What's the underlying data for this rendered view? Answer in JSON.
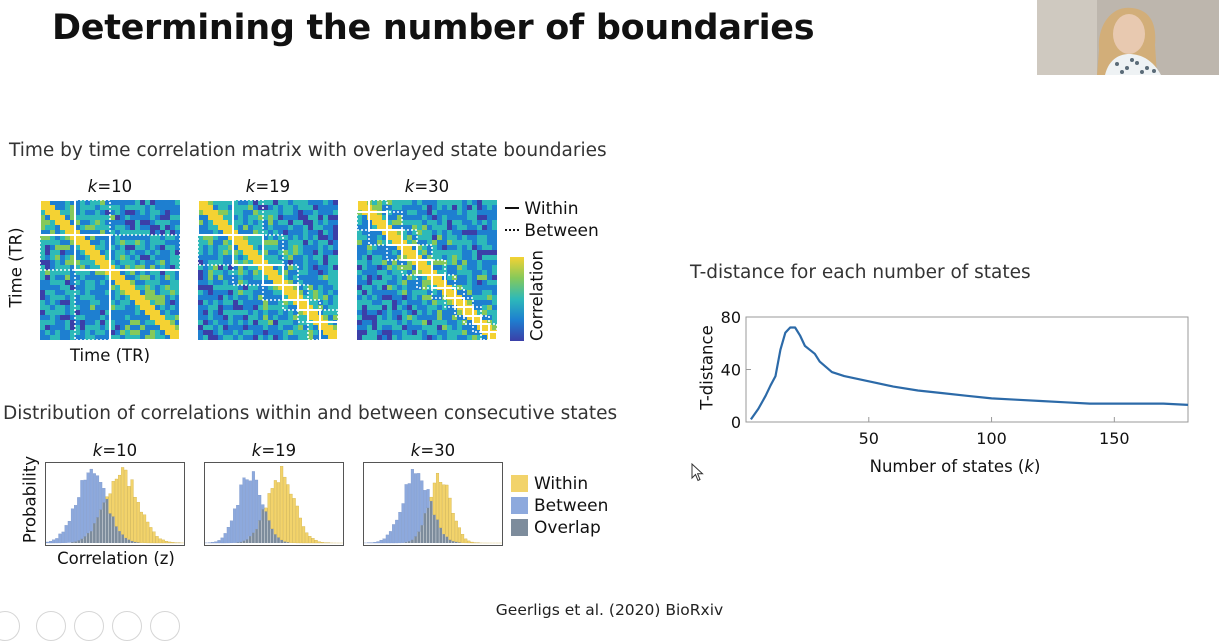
{
  "slide": {
    "title": "Determining the number of boundaries",
    "citation": "Geerligs et al. (2020) BioRxiv"
  },
  "matrices": {
    "heading": "Time by time correlation matrix with overlayed state boundaries",
    "k_labels": [
      {
        "var": "k",
        "eq": "=10"
      },
      {
        "var": "k",
        "eq": "=19"
      },
      {
        "var": "k",
        "eq": "=30"
      }
    ],
    "xlabel": "Time (TR)",
    "ylabel": "Time (TR)",
    "legend": {
      "within": "Within",
      "between": "Between"
    },
    "colorbar_label": "Correlation",
    "colormap": [
      "#3b3fa8",
      "#1e7fd0",
      "#2db9b9",
      "#86c95a",
      "#f4d233"
    ]
  },
  "histograms": {
    "heading": "Distribution of correlations within and between consecutive states",
    "k_labels": [
      {
        "var": "k",
        "eq": "=10"
      },
      {
        "var": "k",
        "eq": "=19"
      },
      {
        "var": "k",
        "eq": "=30"
      }
    ],
    "xlabel": "Correlation (z)",
    "ylabel": "Probability",
    "legend": [
      {
        "label": "Within",
        "color": "#f2d36b"
      },
      {
        "label": "Between",
        "color": "#8da9dd"
      },
      {
        "label": "Overlap",
        "color": "#7d8c9c"
      }
    ]
  },
  "chart_data": {
    "type": "line",
    "title": "T-distance for each number of states",
    "xlabel": "Number of states",
    "xlabel_var": "k",
    "ylabel": "T-distance",
    "xlim": [
      0,
      180
    ],
    "ylim": [
      0,
      80
    ],
    "xticks": [
      50,
      100,
      150
    ],
    "yticks": [
      0,
      40,
      80
    ],
    "grid": false,
    "color": "#2c6aa8",
    "series": [
      {
        "x": [
          2,
          5,
          8,
          10,
          12,
          14,
          16,
          18,
          20,
          22,
          24,
          26,
          28,
          30,
          35,
          40,
          50,
          60,
          70,
          80,
          90,
          100,
          110,
          120,
          130,
          140,
          150,
          160,
          170,
          180
        ],
        "y": [
          2,
          10,
          20,
          28,
          35,
          55,
          68,
          72,
          72,
          66,
          58,
          55,
          52,
          46,
          38,
          35,
          31,
          27,
          24,
          22,
          20,
          18,
          17,
          16,
          15,
          14,
          14,
          14,
          14,
          13
        ]
      }
    ]
  },
  "icons": {
    "cursor": "mouse-pointer-icon",
    "webcam": "presenter-video-icon",
    "controls": [
      "pointer-icon",
      "pen-icon",
      "slides-icon",
      "zoom-icon",
      "more-icon"
    ]
  }
}
